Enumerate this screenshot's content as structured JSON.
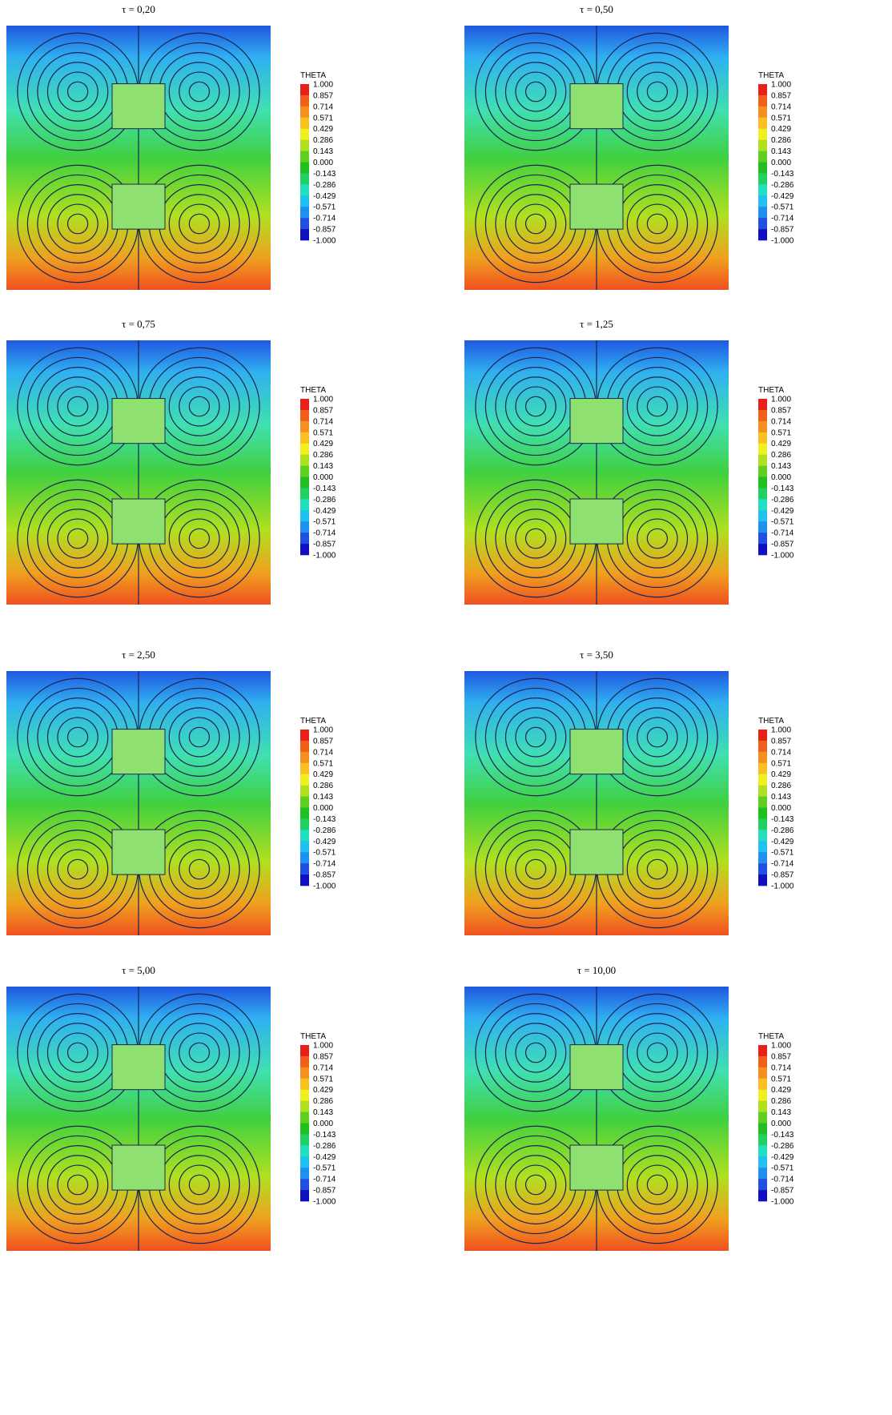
{
  "panels": [
    {
      "title": "τ = 0,20"
    },
    {
      "title": "τ = 0,50"
    },
    {
      "title": "τ = 0,75"
    },
    {
      "title": "τ = 1,25"
    },
    {
      "title": "τ = 2,50"
    },
    {
      "title": "τ = 3,50"
    },
    {
      "title": "τ = 5,00"
    },
    {
      "title": "τ = 10,00"
    }
  ],
  "colorbar": {
    "title": "THETA",
    "labels": [
      "1.000",
      "0.857",
      "0.714",
      "0.571",
      "0.429",
      "0.286",
      "0.143",
      "0.000",
      "-0.143",
      "-0.286",
      "-0.429",
      "-0.571",
      "-0.714",
      "-0.857",
      "-1.000"
    ]
  }
}
